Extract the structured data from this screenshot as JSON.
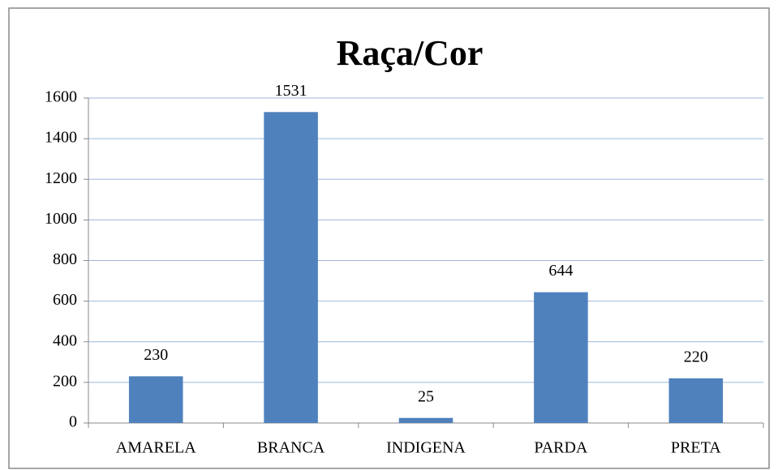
{
  "chart_data": {
    "type": "bar",
    "title": "Raça/Cor",
    "categories": [
      "AMARELA",
      "BRANCA",
      "INDIGENA",
      "PARDA",
      "PRETA"
    ],
    "values": [
      230,
      1531,
      25,
      644,
      220
    ],
    "color": "#4f81bd",
    "ylim": [
      0,
      1600
    ],
    "yticks": [
      0,
      200,
      400,
      600,
      800,
      1000,
      1200,
      1400,
      1600
    ],
    "grid": true
  }
}
